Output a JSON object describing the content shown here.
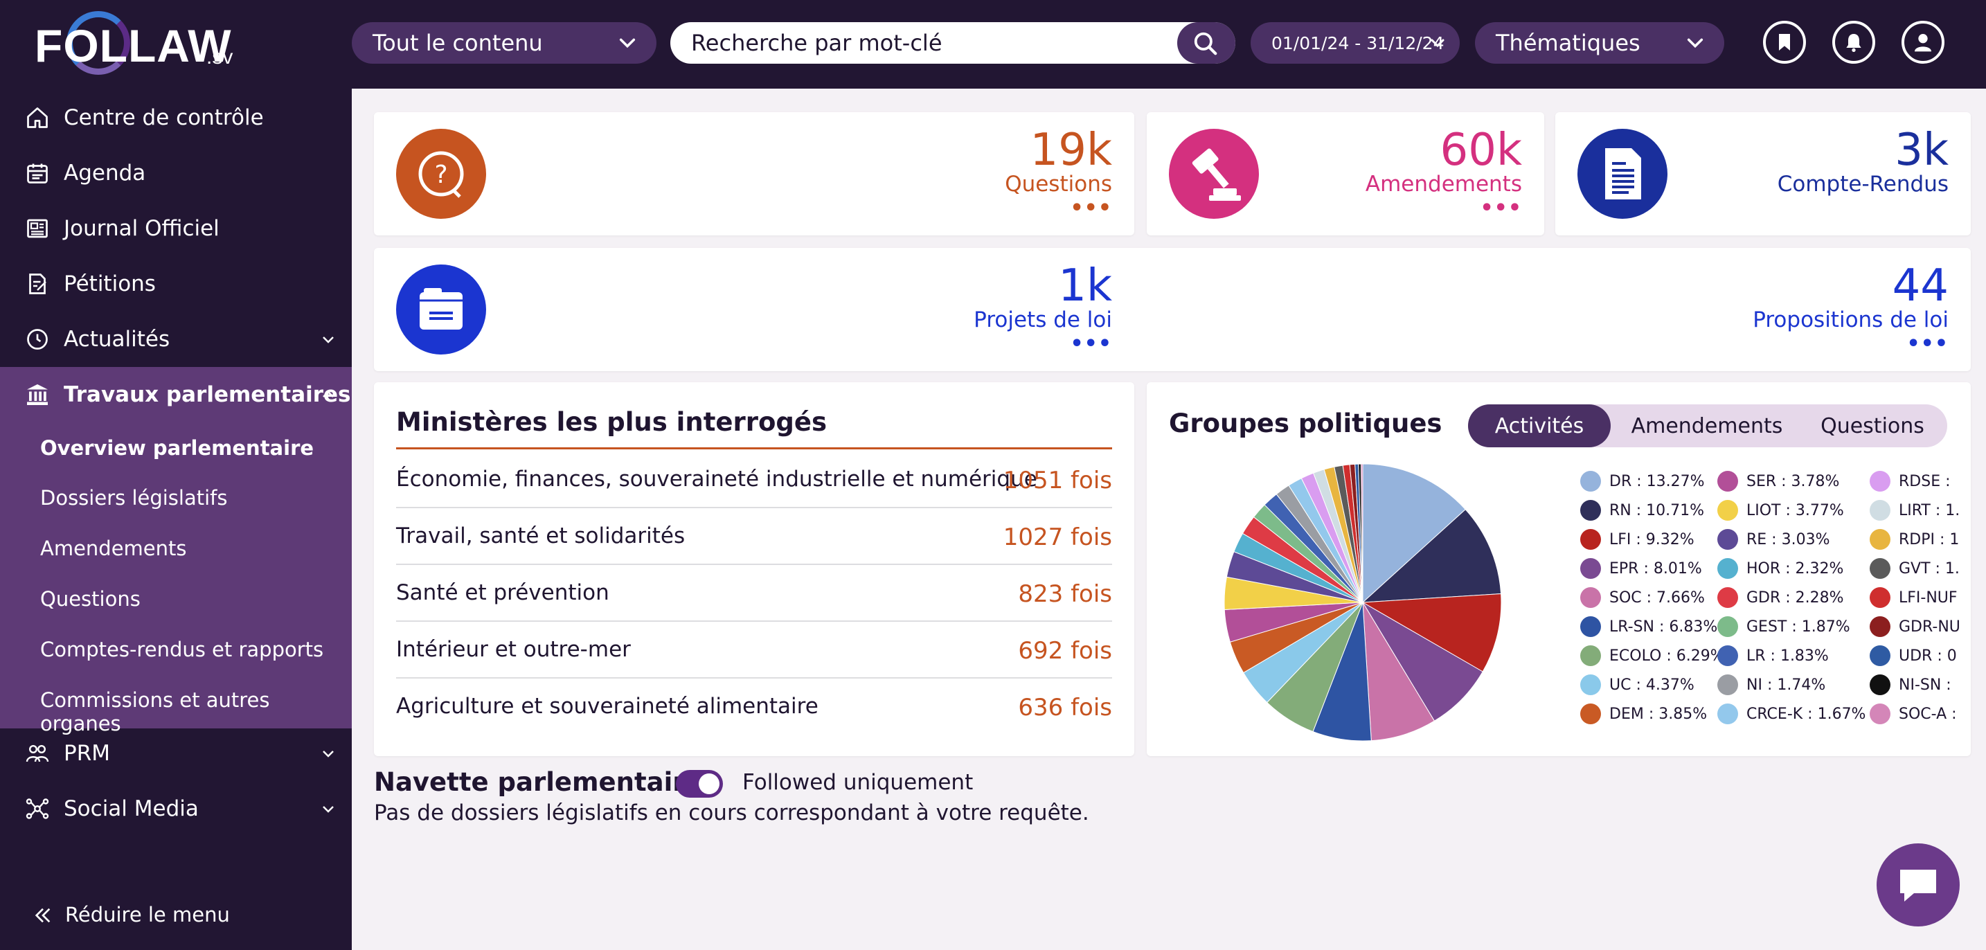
{
  "logo": {
    "text": "FOLLAW",
    "suffix": ".sv"
  },
  "header": {
    "content_filter": "Tout le contenu",
    "search_placeholder": "Recherche par mot-clé",
    "date_range": "01/01/24 - 31/12/24",
    "themes": "Thématiques",
    "icons": [
      "bookmark-icon",
      "bell-icon",
      "user-icon"
    ]
  },
  "sidebar": {
    "items": [
      {
        "label": "Centre de contrôle",
        "icon": "home-icon"
      },
      {
        "label": "Agenda",
        "icon": "calendar-icon"
      },
      {
        "label": "Journal Officiel",
        "icon": "newspaper-icon"
      },
      {
        "label": "Pétitions",
        "icon": "petition-icon"
      },
      {
        "label": "Actualités",
        "icon": "clock-icon"
      },
      {
        "label": "Travaux parlementaires",
        "icon": "parliament-icon"
      },
      {
        "label": "PRM",
        "icon": "people-icon"
      },
      {
        "label": "Social Media",
        "icon": "network-icon"
      }
    ],
    "sub_items": [
      "Overview parlementaire",
      "Dossiers législatifs",
      "Amendements",
      "Questions",
      "Comptes-rendus et rapports",
      "Commissions et autres organes"
    ],
    "reduce": "Réduire le menu"
  },
  "stats": [
    {
      "value": "19k",
      "label": "Questions",
      "color": "#c65420"
    },
    {
      "value": "60k",
      "label": "Amendements",
      "color": "#d4307f"
    },
    {
      "value": "3k",
      "label": "Compte-Rendus",
      "color": "#1a2f9c"
    },
    {
      "value": "1k",
      "label": "Projets de loi",
      "color": "#1b35d0"
    },
    {
      "value": "44",
      "label": "Propositions de loi",
      "color": "#1b35d0"
    }
  ],
  "dots": "•••",
  "ministeres": {
    "title": "Ministères les plus interrogés",
    "rows": [
      {
        "name": "Économie, finances, souveraineté industrielle et numérique",
        "count": "1051 fois"
      },
      {
        "name": "Travail, santé et solidarités",
        "count": "1027 fois"
      },
      {
        "name": "Santé et prévention",
        "count": "823 fois"
      },
      {
        "name": "Intérieur et outre-mer",
        "count": "692 fois"
      },
      {
        "name": "Agriculture et souveraineté alimentaire",
        "count": "636 fois"
      }
    ]
  },
  "groupes": {
    "title": "Groupes politiques",
    "tabs": [
      "Activités",
      "Amendements",
      "Questions"
    ],
    "legend": [
      {
        "label": "DR : 13.27%",
        "color": "#95b3dc"
      },
      {
        "label": "RN : 10.71%",
        "color": "#2f2f5a"
      },
      {
        "label": "LFI : 9.32%",
        "color": "#b8241f"
      },
      {
        "label": "EPR : 8.01%",
        "color": "#7a4a92"
      },
      {
        "label": "SOC : 7.66%",
        "color": "#c973a8"
      },
      {
        "label": "LR-SN : 6.83%",
        "color": "#2e54a3"
      },
      {
        "label": "ECOLO : 6.29%",
        "color": "#83ac79"
      },
      {
        "label": "UC : 4.37%",
        "color": "#8ac9ea"
      },
      {
        "label": "DEM : 3.85%",
        "color": "#c95a24"
      },
      {
        "label": "SER : 3.78%",
        "color": "#b24f98"
      },
      {
        "label": "LIOT : 3.77%",
        "color": "#f2d048"
      },
      {
        "label": "RE : 3.03%",
        "color": "#5d4a96"
      },
      {
        "label": "HOR : 2.32%",
        "color": "#55b1cf"
      },
      {
        "label": "GDR : 2.28%",
        "color": "#de3b45"
      },
      {
        "label": "GEST : 1.87%",
        "color": "#7dbb8a"
      },
      {
        "label": "LR : 1.83%",
        "color": "#4062b2"
      },
      {
        "label": "NI : 1.74%",
        "color": "#9a9da3"
      },
      {
        "label": "CRCE-K : 1.67%",
        "color": "#93c8ec"
      },
      {
        "label": "RDSE : ",
        "color": "#d99df0"
      },
      {
        "label": "LIRT : 1.",
        "color": "#d0dde3"
      },
      {
        "label": "RDPI : 1",
        "color": "#e8b540"
      },
      {
        "label": "GVT : 1.",
        "color": "#5b5b5b"
      },
      {
        "label": "LFI-NUF",
        "color": "#cf2e2e"
      },
      {
        "label": "GDR-NU",
        "color": "#8c1f1f"
      },
      {
        "label": "UDR : 0",
        "color": "#2f5ba3"
      },
      {
        "label": "NI-SN : ",
        "color": "#111111"
      },
      {
        "label": "SOC-A : ",
        "color": "#d486b8"
      }
    ]
  },
  "chart_data": {
    "type": "pie",
    "slices": [
      {
        "name": "DR",
        "value": 13.27
      },
      {
        "name": "RN",
        "value": 10.71
      },
      {
        "name": "LFI",
        "value": 9.32
      },
      {
        "name": "EPR",
        "value": 8.01
      },
      {
        "name": "SOC",
        "value": 7.66
      },
      {
        "name": "LR-SN",
        "value": 6.83
      },
      {
        "name": "ECOLO",
        "value": 6.29
      },
      {
        "name": "UC",
        "value": 4.37
      },
      {
        "name": "DEM",
        "value": 3.85
      },
      {
        "name": "SER",
        "value": 3.78
      },
      {
        "name": "LIOT",
        "value": 3.77
      },
      {
        "name": "RE",
        "value": 3.03
      },
      {
        "name": "HOR",
        "value": 2.32
      },
      {
        "name": "GDR",
        "value": 2.28
      },
      {
        "name": "GEST",
        "value": 1.87
      },
      {
        "name": "LR",
        "value": 1.83
      },
      {
        "name": "NI",
        "value": 1.74
      },
      {
        "name": "CRCE-K",
        "value": 1.67
      },
      {
        "name": "RDSE",
        "value": 1.5
      },
      {
        "name": "LIRT",
        "value": 1.3
      },
      {
        "name": "RDPI",
        "value": 1.2
      },
      {
        "name": "GVT",
        "value": 1.0
      },
      {
        "name": "LFI-NUF",
        "value": 0.8
      },
      {
        "name": "GDR-NU",
        "value": 0.6
      },
      {
        "name": "UDR",
        "value": 0.4
      },
      {
        "name": "NI-SN",
        "value": 0.3
      },
      {
        "name": "SOC-A",
        "value": 0.2
      }
    ]
  },
  "navette": {
    "title": "Navette parlementaire",
    "toggle_label": "Followed uniquement",
    "empty_message": "Pas de dossiers législatifs en cours correspondant à votre requête."
  }
}
